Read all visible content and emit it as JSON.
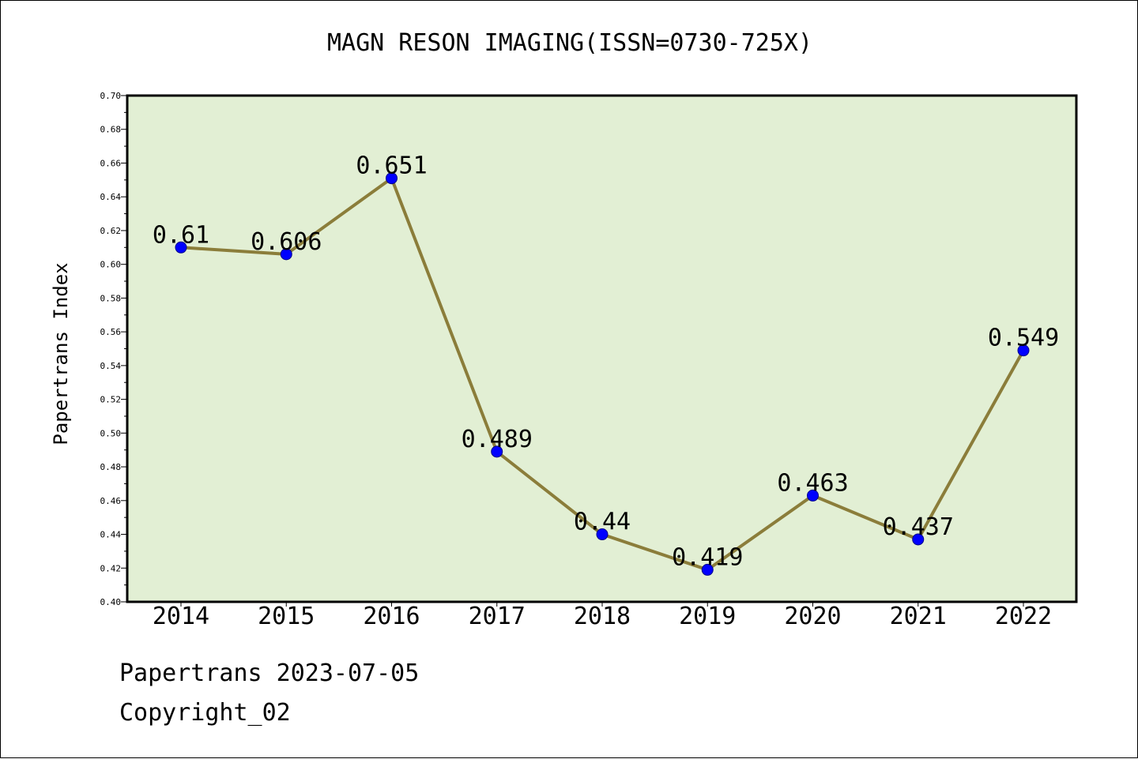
{
  "chart_data": {
    "type": "line",
    "title": "MAGN RESON IMAGING(ISSN=0730-725X)",
    "xlabel": "",
    "ylabel": "Papertrans Index",
    "categories": [
      "2014",
      "2015",
      "2016",
      "2017",
      "2018",
      "2019",
      "2020",
      "2021",
      "2022"
    ],
    "series": [
      {
        "values": [
          0.61,
          0.606,
          0.651,
          0.489,
          0.44,
          0.419,
          0.463,
          0.437,
          0.549
        ],
        "data_labels": [
          "0.61",
          "0.606",
          "0.651",
          "0.489",
          "0.44",
          "0.419",
          "0.463",
          "0.437",
          "0.549"
        ]
      }
    ],
    "ylim": [
      0.4,
      0.7
    ],
    "yticks": [
      "0.40",
      "0.42",
      "0.44",
      "0.46",
      "0.48",
      "0.50",
      "0.52",
      "0.54",
      "0.56",
      "0.58",
      "0.60",
      "0.62",
      "0.64",
      "0.66",
      "0.68",
      "0.70"
    ],
    "grid": false,
    "colors": {
      "line": "#8B7D3A",
      "marker": "#0000FF",
      "plot_background": "#E2EFD4"
    }
  },
  "footer": {
    "line1": "Papertrans 2023-07-05",
    "line2": "Copyright_02"
  }
}
